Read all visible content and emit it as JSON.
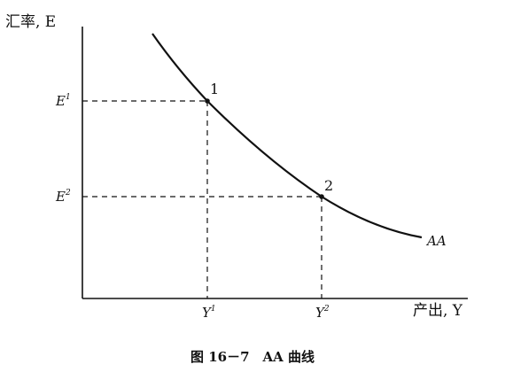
{
  "axes": {
    "y_label": "汇率, E",
    "x_label": "产出, Y"
  },
  "points": [
    {
      "label": "1",
      "e_label": "E",
      "e_sup": "1",
      "y_label": "Y",
      "y_sup": "1"
    },
    {
      "label": "2",
      "e_label": "E",
      "e_sup": "2",
      "y_label": "Y",
      "y_sup": "2"
    }
  ],
  "curve": {
    "label": "AA"
  },
  "caption": "图 16－7　AA 曲线",
  "colors": {
    "ink": "#111111"
  }
}
